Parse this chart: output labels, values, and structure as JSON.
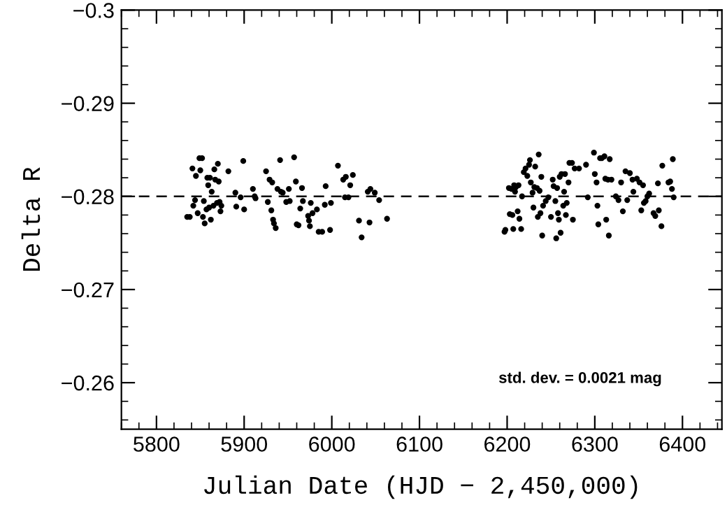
{
  "chart_data": {
    "type": "scatter",
    "xlabel": "Julian Date (HJD − 2,450,000)",
    "ylabel": "Delta R",
    "xlim": [
      5760,
      6445
    ],
    "xticks": [
      5800,
      5900,
      6000,
      6100,
      6200,
      6300,
      6400
    ],
    "ylim": [
      -0.255,
      -0.3
    ],
    "yticks": [
      {
        "value": -0.3,
        "label": "−0.3"
      },
      {
        "value": -0.29,
        "label": "−0.29"
      },
      {
        "value": -0.28,
        "label": "−0.28"
      },
      {
        "value": -0.27,
        "label": "−0.27"
      },
      {
        "value": -0.26,
        "label": "−0.26"
      }
    ],
    "marker": "circle",
    "grid": false,
    "legend": false,
    "ref_lines": [
      {
        "axis": "y",
        "value": -0.28,
        "label": null,
        "color": "#000000",
        "line_style": "dashed"
      }
    ],
    "annotations": [
      "std. dev. = 0.0021 mag"
    ],
    "series": [
      {
        "color": "#000000",
        "x": [
          5835,
          5838,
          5841,
          5842,
          5844,
          5845,
          5847,
          5849,
          5852,
          5850,
          5853,
          5854,
          5855,
          5857,
          5858,
          5859,
          5860,
          5861,
          5862,
          5863,
          5865,
          5866,
          5867,
          5869,
          5870,
          5871,
          5872,
          5873,
          5874,
          5882,
          5890,
          5891,
          5896,
          5899,
          5900,
          5910,
          5912,
          5913,
          5925,
          5927,
          5929,
          5931,
          5932,
          5933,
          5934,
          5936,
          5938,
          5941,
          5942,
          5944,
          5948,
          5951,
          5952,
          5957,
          5959,
          5960,
          5962,
          5964,
          5966,
          5967,
          5973,
          5974,
          5975,
          5976,
          5978,
          5983,
          5985,
          5989,
          5992,
          5993,
          5998,
          5999,
          6007,
          6013,
          6015,
          6016,
          6019,
          6021,
          6024,
          6031,
          6034,
          6041,
          6043,
          6044,
          6049,
          6054,
          6063,
          6197,
          6198,
          6202,
          6203,
          6205,
          6206,
          6207,
          6208,
          6209,
          6210,
          6212,
          6213,
          6214,
          6216,
          6217,
          6219,
          6221,
          6223,
          6225,
          6226,
          6227,
          6229,
          6230,
          6231,
          6232,
          6234,
          6235,
          6236,
          6237,
          6238,
          6239,
          6240,
          6241,
          6244,
          6247,
          6250,
          6252,
          6253,
          6255,
          6256,
          6257,
          6258,
          6259,
          6260,
          6261,
          6262,
          6264,
          6265,
          6266,
          6267,
          6268,
          6270,
          6271,
          6274,
          6275,
          6277,
          6282,
          6290,
          6292,
          6299,
          6300,
          6302,
          6303,
          6304,
          6306,
          6308,
          6311,
          6312,
          6313,
          6315,
          6316,
          6317,
          6319,
          6324,
          6327,
          6330,
          6332,
          6335,
          6337,
          6340,
          6343,
          6344,
          6348,
          6351,
          6353,
          6355,
          6356,
          6358,
          6360,
          6362,
          6367,
          6369,
          6372,
          6373,
          6376,
          6377,
          6384,
          6386,
          6388,
          6389,
          6390
        ],
        "values": [
          -0.2778,
          -0.2778,
          -0.283,
          -0.279,
          -0.2796,
          -0.2822,
          -0.2782,
          -0.2841,
          -0.2841,
          -0.2828,
          -0.2778,
          -0.2795,
          -0.2771,
          -0.2786,
          -0.282,
          -0.2812,
          -0.2788,
          -0.282,
          -0.2775,
          -0.2805,
          -0.279,
          -0.2829,
          -0.2818,
          -0.2793,
          -0.2835,
          -0.2816,
          -0.2794,
          -0.2784,
          -0.279,
          -0.2827,
          -0.2804,
          -0.2789,
          -0.2799,
          -0.2838,
          -0.2786,
          -0.2808,
          -0.28,
          -0.2798,
          -0.2827,
          -0.2794,
          -0.2818,
          -0.2785,
          -0.2815,
          -0.2775,
          -0.2771,
          -0.2766,
          -0.2808,
          -0.2839,
          -0.2805,
          -0.2804,
          -0.2794,
          -0.2808,
          -0.2795,
          -0.2842,
          -0.2816,
          -0.277,
          -0.2769,
          -0.2787,
          -0.2809,
          -0.2795,
          -0.2779,
          -0.2774,
          -0.2768,
          -0.2793,
          -0.2782,
          -0.2786,
          -0.2762,
          -0.2762,
          -0.2791,
          -0.2811,
          -0.2764,
          -0.2793,
          -0.2833,
          -0.2818,
          -0.2799,
          -0.2821,
          -0.2799,
          -0.2812,
          -0.2823,
          -0.2774,
          -0.2756,
          -0.2805,
          -0.2772,
          -0.2808,
          -0.2804,
          -0.2796,
          -0.2776,
          -0.2762,
          -0.2764,
          -0.2809,
          -0.2781,
          -0.2808,
          -0.278,
          -0.2765,
          -0.2812,
          -0.2805,
          -0.281,
          -0.2784,
          -0.2812,
          -0.2776,
          -0.2765,
          -0.28,
          -0.2826,
          -0.283,
          -0.2822,
          -0.2834,
          -0.2839,
          -0.2815,
          -0.2804,
          -0.2788,
          -0.281,
          -0.2832,
          -0.2809,
          -0.2778,
          -0.2845,
          -0.2806,
          -0.2782,
          -0.2821,
          -0.2758,
          -0.279,
          -0.2795,
          -0.2799,
          -0.2778,
          -0.2818,
          -0.2811,
          -0.2795,
          -0.2755,
          -0.2809,
          -0.2782,
          -0.2775,
          -0.2821,
          -0.2761,
          -0.2824,
          -0.279,
          -0.2805,
          -0.2824,
          -0.278,
          -0.2793,
          -0.2815,
          -0.2836,
          -0.2836,
          -0.2775,
          -0.283,
          -0.283,
          -0.2834,
          -0.2799,
          -0.2847,
          -0.2824,
          -0.2815,
          -0.279,
          -0.277,
          -0.2841,
          -0.2841,
          -0.2843,
          -0.2819,
          -0.2775,
          -0.2818,
          -0.2758,
          -0.284,
          -0.2818,
          -0.28,
          -0.2796,
          -0.2815,
          -0.2784,
          -0.2827,
          -0.2796,
          -0.2825,
          -0.2818,
          -0.2805,
          -0.2819,
          -0.2815,
          -0.2785,
          -0.2812,
          -0.2793,
          -0.2795,
          -0.28,
          -0.2803,
          -0.2782,
          -0.2779,
          -0.2814,
          -0.2785,
          -0.2768,
          -0.2833,
          -0.2815,
          -0.2816,
          -0.2808,
          -0.284,
          -0.2799
        ]
      }
    ]
  }
}
